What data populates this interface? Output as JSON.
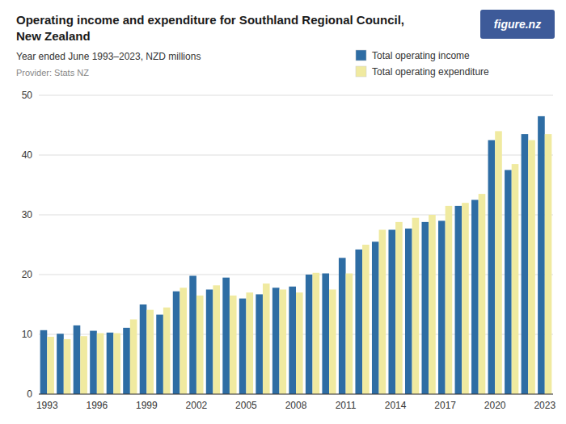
{
  "chart_data": {
    "type": "bar",
    "title": "Operating income and expenditure for Southland Regional Council,\nNew Zealand",
    "subtitle": "Year ended June 1993–2023, NZD millions",
    "annotations": [
      "Provider: Stats NZ",
      "figure.nz"
    ],
    "categories": [
      "1993",
      null,
      null,
      "1996",
      null,
      null,
      "1999",
      null,
      null,
      "2002",
      null,
      null,
      "2005",
      null,
      null,
      "2008",
      null,
      null,
      "2011",
      null,
      null,
      "2014",
      null,
      null,
      "2017",
      null,
      null,
      "2020",
      null,
      null,
      "2023"
    ],
    "series": [
      {
        "name": "Total operating income",
        "color": "#2E6DA4",
        "values": [
          10.7,
          10.1,
          11.5,
          10.6,
          10.3,
          11.1,
          15.0,
          13.3,
          17.2,
          19.8,
          17.5,
          19.5,
          16.0,
          16.7,
          17.8,
          18.0,
          20.0,
          20.2,
          22.8,
          24.2,
          25.5,
          27.5,
          27.7,
          28.8,
          29.0,
          31.5,
          32.5,
          42.5,
          37.5,
          43.5,
          46.5
        ]
      },
      {
        "name": "Total operating expenditure",
        "color": "#F0EAA0",
        "values": [
          9.6,
          9.2,
          9.7,
          10.2,
          10.2,
          12.5,
          14.1,
          14.5,
          17.8,
          16.5,
          18.2,
          16.5,
          17.0,
          18.5,
          17.5,
          17.0,
          20.3,
          17.5,
          20.2,
          25.0,
          27.5,
          28.8,
          29.5,
          30.0,
          31.5,
          32.0,
          33.5,
          44.0,
          38.5,
          42.5,
          43.5
        ]
      }
    ],
    "ylim": [
      0,
      50
    ],
    "yticks": [
      0,
      10,
      20,
      30,
      40,
      50
    ],
    "grid": true,
    "legend": "upper right"
  }
}
